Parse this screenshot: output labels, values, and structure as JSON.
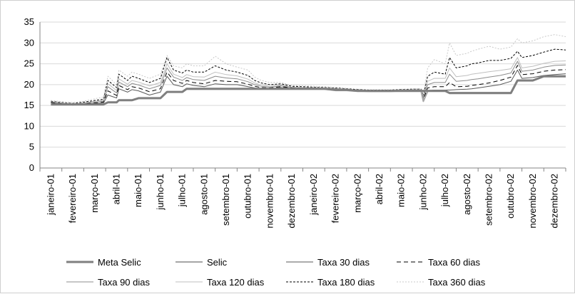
{
  "chart_data": {
    "type": "line",
    "ylim": [
      0,
      35
    ],
    "yticks": [
      0,
      5,
      10,
      15,
      20,
      25,
      30,
      35
    ],
    "grid": true,
    "legend_position": "bottom",
    "categories": [
      "janeiro-01",
      "fevereiro-01",
      "março-01",
      "abril-01",
      "maio-01",
      "junho-01",
      "julho-01",
      "agosto-01",
      "setembro-01",
      "outubro-01",
      "novembro-01",
      "dezembro-01",
      "janeiro-02",
      "fevereiro-02",
      "março-02",
      "abril-02",
      "maio-02",
      "junho-02",
      "julho-02",
      "agosto-02",
      "setembro-02",
      "outubro-02",
      "novembro-02",
      "dezembro-02"
    ],
    "x": [
      0,
      0.5,
      1,
      1.5,
      2,
      2.4,
      2.6,
      3,
      3.1,
      3.5,
      3.7,
      4,
      4.5,
      5,
      5.3,
      5.6,
      6,
      6.2,
      6.5,
      7,
      7.5,
      8,
      8.5,
      9,
      9.3,
      9.6,
      10,
      10.5,
      11,
      11.5,
      12,
      12.5,
      13,
      13.5,
      14,
      14.5,
      15,
      15.5,
      16,
      16.5,
      16.9,
      17,
      17.2,
      17.5,
      18,
      18.2,
      18.5,
      19,
      19.2,
      19.5,
      20,
      20.5,
      21,
      21.3,
      21.5,
      22,
      22.5,
      23,
      23.5
    ],
    "series": [
      {
        "name": "Meta Selic",
        "style": "meta",
        "values": [
          15.25,
          15.25,
          15.25,
          15.25,
          15.25,
          15.25,
          15.75,
          15.75,
          16.25,
          16.25,
          16.25,
          16.75,
          16.75,
          16.75,
          18.25,
          18.25,
          18.25,
          19,
          19,
          19,
          19,
          19,
          19,
          19,
          19,
          19,
          19,
          19,
          19,
          19,
          19,
          19,
          18.75,
          18.75,
          18.5,
          18.5,
          18.5,
          18.5,
          18.5,
          18.5,
          18.5,
          18.5,
          18.5,
          18.5,
          18.5,
          18,
          18,
          18,
          18,
          18,
          18,
          18,
          18,
          21,
          21,
          21,
          22,
          22,
          22
        ]
      },
      {
        "name": "Selic",
        "style": "selic",
        "values": [
          15.2,
          15.2,
          15.2,
          15.2,
          15.2,
          15.2,
          15.7,
          15.7,
          16.2,
          16.2,
          16.2,
          16.7,
          16.7,
          16.7,
          18.2,
          18.2,
          18.2,
          18.9,
          18.9,
          18.9,
          18.9,
          18.9,
          18.9,
          18.9,
          18.9,
          18.9,
          18.9,
          18.9,
          18.9,
          18.9,
          18.9,
          18.9,
          18.6,
          18.6,
          18.4,
          18.4,
          18.4,
          18.4,
          18.4,
          18.4,
          18.4,
          16,
          18.4,
          18.4,
          18.4,
          17.9,
          17.9,
          17.9,
          17.9,
          17.9,
          17.9,
          17.9,
          17.9,
          20.9,
          20.9,
          20.9,
          21.9,
          21.9,
          21.9
        ]
      },
      {
        "name": "Taxa 30 dias",
        "style": "t30",
        "values": [
          15.6,
          15.3,
          15.1,
          15.3,
          15.5,
          15.6,
          17.5,
          16.8,
          19,
          18.2,
          18.8,
          18.5,
          17.5,
          18.2,
          22,
          20,
          19.5,
          20.2,
          19.8,
          19.5,
          20.2,
          20,
          20,
          19.5,
          19.2,
          19,
          19,
          19.3,
          19.1,
          19,
          19,
          18.9,
          18.8,
          18.6,
          18.4,
          18.3,
          18.3,
          18.3,
          18.4,
          18.5,
          18.5,
          16.2,
          18.6,
          18.7,
          18.7,
          18.7,
          18.8,
          18.9,
          19,
          19.2,
          19.6,
          20,
          20.8,
          23.5,
          21.5,
          21.7,
          22.2,
          22.4,
          22.6
        ]
      },
      {
        "name": "Taxa 60 dias",
        "style": "t60",
        "values": [
          15.7,
          15.4,
          15.2,
          15.4,
          15.6,
          15.8,
          18.5,
          17.4,
          19.8,
          18.8,
          19.5,
          19.2,
          18.3,
          19,
          23,
          21,
          20.3,
          21,
          20.5,
          20.2,
          21,
          20.8,
          20.7,
          20.1,
          19.6,
          19.3,
          19.2,
          19.5,
          19.2,
          19.1,
          19.1,
          19,
          18.9,
          18.7,
          18.5,
          18.4,
          18.4,
          18.4,
          18.5,
          18.6,
          18.6,
          16.5,
          19.2,
          19.5,
          19.5,
          20.5,
          19.5,
          19.6,
          19.8,
          20,
          20.4,
          21,
          21.8,
          24.6,
          22.4,
          22.6,
          23.2,
          23.5,
          23.6
        ]
      },
      {
        "name": "Taxa 90 dias",
        "style": "t90",
        "values": [
          15.8,
          15.5,
          15.3,
          15.5,
          15.8,
          16,
          19.5,
          18,
          20.6,
          19.5,
          20.3,
          19.9,
          19,
          19.8,
          24,
          21.8,
          21,
          21.7,
          21.2,
          21,
          22,
          21.6,
          21.4,
          20.7,
          20,
          19.6,
          19.4,
          19.7,
          19.3,
          19.2,
          19.2,
          19.1,
          19,
          18.8,
          18.6,
          18.5,
          18.5,
          18.5,
          18.6,
          18.7,
          18.7,
          16.8,
          20,
          20.5,
          20.5,
          22.5,
          20.8,
          21,
          21.2,
          21.4,
          21.8,
          22.2,
          22.8,
          25.6,
          23.2,
          23.5,
          24.2,
          24.6,
          24.7
        ]
      },
      {
        "name": "Taxa 120 dias",
        "style": "t120",
        "values": [
          15.9,
          15.6,
          15.4,
          15.6,
          16,
          16.2,
          20.2,
          18.6,
          21.4,
          20.1,
          21,
          20.6,
          19.7,
          20.5,
          25,
          22.5,
          21.7,
          22.4,
          21.9,
          21.8,
          23,
          22.4,
          22.1,
          21.3,
          20.4,
          19.9,
          19.6,
          19.9,
          19.4,
          19.3,
          19.3,
          19.2,
          19.1,
          18.9,
          18.7,
          18.6,
          18.6,
          18.6,
          18.7,
          18.8,
          18.8,
          17,
          20.8,
          21.5,
          21.5,
          24,
          21.9,
          22.2,
          22.5,
          22.7,
          23.1,
          23.4,
          23.8,
          26.5,
          24,
          24.4,
          25.1,
          25.6,
          25.7
        ]
      },
      {
        "name": "Taxa 180 dias",
        "style": "t180",
        "values": [
          16,
          15.7,
          15.5,
          15.8,
          16.2,
          16.5,
          21,
          19.3,
          22.5,
          21,
          22,
          21.5,
          20.5,
          21.5,
          26.5,
          23.5,
          22.8,
          23.5,
          23,
          23,
          24.5,
          23.5,
          23,
          22.2,
          21,
          20.4,
          20,
          20.2,
          19.6,
          19.5,
          19.4,
          19.3,
          19.2,
          19,
          18.8,
          18.7,
          18.7,
          18.7,
          18.8,
          18.9,
          18.9,
          17.3,
          22,
          23,
          22.5,
          26.5,
          24,
          24.5,
          25,
          25.2,
          25.8,
          25.8,
          26.3,
          28,
          26.5,
          27,
          27.8,
          28.5,
          28.3
        ]
      },
      {
        "name": "Taxa 360 dias",
        "style": "t360",
        "values": [
          16.2,
          15.9,
          15.7,
          16,
          16.6,
          17,
          22,
          20,
          23.5,
          22,
          23,
          22.5,
          21.5,
          22.5,
          27,
          24.5,
          24,
          25,
          24.5,
          24.5,
          26.8,
          25,
          24.2,
          23.5,
          21.8,
          21,
          20.5,
          20.5,
          19.8,
          19.7,
          19.6,
          19.5,
          19.3,
          19.1,
          18.9,
          18.8,
          18.8,
          18.8,
          18.9,
          19,
          19,
          17.6,
          24,
          26,
          25,
          30,
          27,
          27.5,
          28,
          28.5,
          29.2,
          28.5,
          29,
          31,
          30,
          30.5,
          31.5,
          32,
          31.5
        ]
      }
    ]
  },
  "styles": {
    "meta": {
      "color": "#7f7f7f",
      "width": 3,
      "dash": ""
    },
    "selic": {
      "color": "#a6a6a6",
      "width": 2,
      "dash": ""
    },
    "t30": {
      "color": "#595959",
      "width": 1,
      "dash": ""
    },
    "t60": {
      "color": "#000000",
      "width": 1,
      "dash": "6,4"
    },
    "t90": {
      "color": "#8c8c8c",
      "width": 1,
      "dash": ""
    },
    "t120": {
      "color": "#bfbfbf",
      "width": 1,
      "dash": ""
    },
    "t180": {
      "color": "#000000",
      "width": 1,
      "dash": "3,2"
    },
    "t360": {
      "color": "#c8c8c8",
      "width": 1,
      "dash": "2,2"
    }
  }
}
